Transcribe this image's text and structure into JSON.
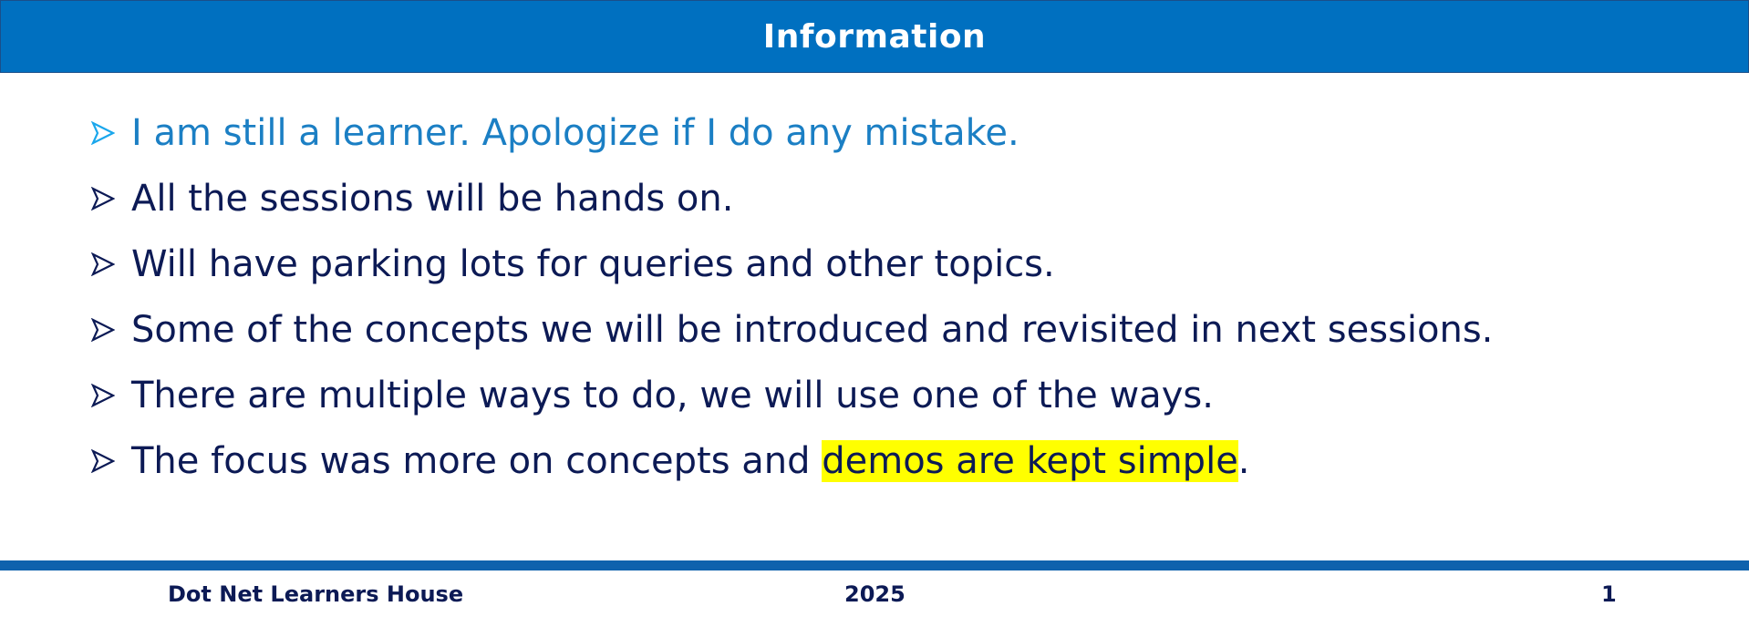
{
  "slide": {
    "title": "Information",
    "bullets": [
      {
        "text": "I am still a learner. Apologize if I do any mistake."
      },
      {
        "text": "All the sessions will be hands on."
      },
      {
        "text": "Will have parking lots for queries and other topics."
      },
      {
        "text": "Some of the concepts we will be introduced and revisited in next sessions."
      },
      {
        "text": "There are multiple ways to do, we will use one of the ways."
      },
      {
        "text_before": "The focus was more on concepts and ",
        "text_highlight": "demos are kept simple",
        "text_after": "."
      }
    ],
    "bullet_icon": "arrow-bullet-icon"
  },
  "footer": {
    "left": "Dot Net Learners House",
    "center": "2025",
    "right": "1"
  },
  "colors": {
    "header_bg": "#0070c0",
    "first_bullet_text": "#1b7fc4",
    "body_text": "#0c1a55",
    "highlight": "#ffff00",
    "footer_line": "#0f62ad"
  }
}
